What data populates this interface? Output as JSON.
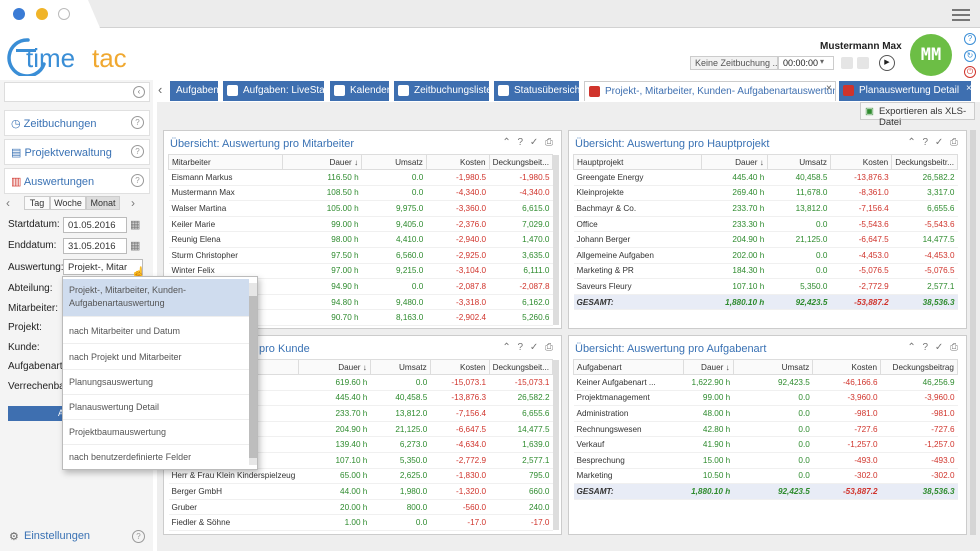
{
  "app": {
    "logo_left": "time",
    "logo_right": "tac",
    "user_name": "Mustermann Max",
    "avatar_initials": "MM",
    "no_tracking": "Keine Zeitbuchung ...",
    "timer": "00:00:00"
  },
  "sidebar": {
    "zeitbuchungen": "Zeitbuchungen",
    "projektverwaltung": "Projektverwaltung",
    "auswertungen": "Auswertungen",
    "seg_tag": "Tag",
    "seg_woche": "Woche",
    "seg_monat": "Monat",
    "startdatum_label": "Startdatum:",
    "startdatum": "01.05.2016",
    "enddatum_label": "Enddatum:",
    "enddatum": "31.05.2016",
    "auswertung_label": "Auswertung:",
    "auswertung_value": "Projekt-, Mitar",
    "abteilung": "Abteilung:",
    "mitarbeiter": "Mitarbeiter:",
    "projekt": "Projekt:",
    "kunde": "Kunde:",
    "aufgabenart": "Aufgabenart:",
    "verrechenbar": "Verrechenbar",
    "einstellungen": "Einstellungen",
    "apply": "A"
  },
  "dropdown": [
    "Projekt-, Mitarbeiter, Kunden-Aufgabenartauswertung",
    "nach Mitarbeiter und Datum",
    "nach Projekt und Mitarbeiter",
    "Planungsauswertung",
    "Planauswertung Detail",
    "Projektbaumauswertung",
    "nach benutzerdefinierte Felder"
  ],
  "tabs": [
    "Aufgaben",
    "Aufgaben: LiveStart",
    "Kalender",
    "Zeitbuchungsliste",
    "Statusübersicht",
    "Projekt-, Mitarbeiter, Kunden- Aufgabenartauswertung",
    "Planauswertung Detail"
  ],
  "export_label": "Exportieren als XLS-Datei",
  "panels": {
    "mitarbeiter": {
      "title": "Übersicht: Auswertung pro Mitarbeiter",
      "headers": [
        "Mitarbeiter",
        "Dauer ↓",
        "Umsatz",
        "Kosten",
        "Deckungsbeit..."
      ],
      "rows": [
        [
          "Eismann Markus",
          "116.50 h",
          "0.0",
          "-1,980.5",
          "-1,980.5"
        ],
        [
          "Mustermann Max",
          "108.50 h",
          "0.0",
          "-4,340.0",
          "-4,340.0"
        ],
        [
          "Walser Martina",
          "105.00 h",
          "9,975.0",
          "-3,360.0",
          "6,615.0"
        ],
        [
          "Keiler Marie",
          "99.00 h",
          "9,405.0",
          "-2,376.0",
          "7,029.0"
        ],
        [
          "Reunig Elena",
          "98.00 h",
          "4,410.0",
          "-2,940.0",
          "1,470.0"
        ],
        [
          "Sturm Christopher",
          "97.50 h",
          "6,560.0",
          "-2,925.0",
          "3,635.0"
        ],
        [
          "Winter Felix",
          "97.00 h",
          "9,215.0",
          "-3,104.0",
          "6,111.0"
        ],
        [
          "",
          "94.90 h",
          "0.0",
          "-2,087.8",
          "-2,087.8"
        ],
        [
          "",
          "94.80 h",
          "9,480.0",
          "-3,318.0",
          "6,162.0"
        ],
        [
          "",
          "90.70 h",
          "8,163.0",
          "-2,902.4",
          "5,260.6"
        ]
      ]
    },
    "hauptprojekt": {
      "title": "Übersicht: Auswertung pro Hauptprojekt",
      "headers": [
        "Hauptprojekt",
        "Dauer ↓",
        "Umsatz",
        "Kosten",
        "Deckungsbeitr..."
      ],
      "rows": [
        [
          "Greengate Energy",
          "445.40 h",
          "40,458.5",
          "-13,876.3",
          "26,582.2"
        ],
        [
          "Kleinprojekte",
          "269.40 h",
          "11,678.0",
          "-8,361.0",
          "3,317.0"
        ],
        [
          "Bachmayr & Co.",
          "233.70 h",
          "13,812.0",
          "-7,156.4",
          "6,655.6"
        ],
        [
          "Office",
          "233.30 h",
          "0.0",
          "-5,543.6",
          "-5,543.6"
        ],
        [
          "Johann Berger",
          "204.90 h",
          "21,125.0",
          "-6,647.5",
          "14,477.5"
        ],
        [
          "Allgemeine Aufgaben",
          "202.00 h",
          "0.0",
          "-4,453.0",
          "-4,453.0"
        ],
        [
          "Marketing & PR",
          "184.30 h",
          "0.0",
          "-5,076.5",
          "-5,076.5"
        ],
        [
          "Saveurs Fleury",
          "107.10 h",
          "5,350.0",
          "-2,772.9",
          "2,577.1"
        ]
      ],
      "total": [
        "GESAMT:",
        "1,880.10 h",
        "92,423.5",
        "-53,887.2",
        "38,536.3"
      ]
    },
    "kunde": {
      "title_suffix": "pro Kunde",
      "headers": [
        "",
        "Dauer ↓",
        "Umsatz",
        "Kosten",
        "Deckungsbeit..."
      ],
      "rows": [
        [
          "",
          "619.60 h",
          "0.0",
          "-15,073.1",
          "-15,073.1"
        ],
        [
          "",
          "445.40 h",
          "40,458.5",
          "-13,876.3",
          "26,582.2"
        ],
        [
          "",
          "233.70 h",
          "13,812.0",
          "-7,156.4",
          "6,655.6"
        ],
        [
          "",
          "204.90 h",
          "21,125.0",
          "-6,647.5",
          "14,477.5"
        ],
        [
          "",
          "139.40 h",
          "6,273.0",
          "-4,634.0",
          "1,639.0"
        ],
        [
          "",
          "107.10 h",
          "5,350.0",
          "-2,772.9",
          "2,577.1"
        ],
        [
          "Herr & Frau Klein Kinderspielzeug",
          "65.00 h",
          "2,625.0",
          "-1,830.0",
          "795.0"
        ],
        [
          "Berger GmbH",
          "44.00 h",
          "1,980.0",
          "-1,320.0",
          "660.0"
        ],
        [
          "Gruber",
          "20.00 h",
          "800.0",
          "-560.0",
          "240.0"
        ],
        [
          "Fiedler & Söhne",
          "1.00 h",
          "0.0",
          "-17.0",
          "-17.0"
        ]
      ]
    },
    "aufgabenart": {
      "title": "Übersicht: Auswertung pro Aufgabenart",
      "headers": [
        "Aufgabenart",
        "Dauer ↓",
        "Umsatz",
        "Kosten",
        "Deckungsbeitrag"
      ],
      "rows": [
        [
          "Keiner Aufgabenart ...",
          "1,622.90 h",
          "92,423.5",
          "-46,166.6",
          "46,256.9"
        ],
        [
          "Projektmanagement",
          "99.00 h",
          "0.0",
          "-3,960.0",
          "-3,960.0"
        ],
        [
          "Administration",
          "48.00 h",
          "0.0",
          "-981.0",
          "-981.0"
        ],
        [
          "Rechnungswesen",
          "42.80 h",
          "0.0",
          "-727.6",
          "-727.6"
        ],
        [
          "Verkauf",
          "41.90 h",
          "0.0",
          "-1,257.0",
          "-1,257.0"
        ],
        [
          "Besprechung",
          "15.00 h",
          "0.0",
          "-493.0",
          "-493.0"
        ],
        [
          "Marketing",
          "10.50 h",
          "0.0",
          "-302.0",
          "-302.0"
        ]
      ],
      "total": [
        "GESAMT:",
        "1,880.10 h",
        "92,423.5",
        "-53,887.2",
        "38,536.3"
      ]
    }
  }
}
